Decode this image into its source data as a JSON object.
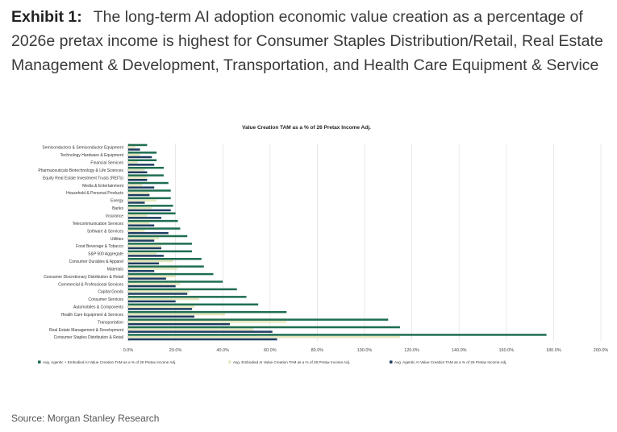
{
  "exhibit": {
    "label": "Exhibit 1:",
    "text": "The long-term AI adoption economic value creation as a percentage of 2026e pretax income is highest for Consumer Staples Distribution/Retail, Real Estate Management & Development, Transportation, and Health Care Equipment & Service"
  },
  "source": "Source: Morgan Stanley Research",
  "colors": {
    "combined": "#1e6e50",
    "embodied": "#e5e7bd",
    "agentic": "#1f3d62",
    "grid": "#e3e3e3"
  },
  "chart_data": {
    "type": "bar",
    "orientation": "horizontal",
    "title": "Value Creation TAM as a % of 26 Pretax Income Adj.",
    "xlim": [
      0,
      200
    ],
    "xticks": [
      "0.0%",
      "20.0%",
      "40.0%",
      "60.0%",
      "80.0%",
      "100.0%",
      "120.0%",
      "140.0%",
      "160.0%",
      "180.0%",
      "200.0%"
    ],
    "grid": "vertical",
    "legend_position": "bottom",
    "categories": [
      "Semiconductors & Semiconductor Equipment",
      "Technology Hardware & Equipment",
      "Financial Services",
      "Pharmaceuticals Biotechnology & Life Sciences",
      "Equity Real Estate Investment Trusts (REITs)",
      "Media & Entertainment",
      "Household & Personal Products",
      "Energy",
      "Banks",
      "Insurance",
      "Telecommunication Services",
      "Software & Services",
      "Utilities",
      "Food Beverage & Tobacco",
      "S&P 500 Aggregate",
      "Consumer Durables & Apparel",
      "Materials",
      "Consumer Discretionary Distribution & Retail",
      "Commercial & Professional Services",
      "Capital Goods",
      "Consumer Services",
      "Automobiles & Components",
      "Health Care Equipment & Services",
      "Transportation",
      "Real Estate Management & Development",
      "Consumer Staples Distribution & Retail"
    ],
    "series": [
      {
        "name": "Avg. Agentic + Embodied AI Value Creation TAM as a % of 26 Pretax Income Adj.",
        "values": [
          8,
          12,
          12,
          15,
          15,
          17,
          18,
          18,
          19,
          20,
          21,
          22,
          25,
          27,
          27,
          31,
          32,
          36,
          40,
          46,
          50,
          55,
          67,
          110,
          115,
          177
        ]
      },
      {
        "name": "Avg. Embodied AI Value Creation TAM as a % of 26 Pretax Income Adj.",
        "values": [
          3,
          5,
          4,
          7,
          8,
          6,
          9,
          12,
          10,
          8,
          9,
          7,
          13,
          14,
          12,
          19,
          21,
          20,
          22,
          26,
          30,
          28,
          41,
          67,
          53,
          115
        ]
      },
      {
        "name": "Avg. Agentic AI Value Creation TAM as a % of 26 Pretax Income Adj.",
        "values": [
          5,
          10,
          11,
          8,
          8,
          11,
          9,
          7,
          18,
          14,
          11,
          17,
          11,
          14,
          15,
          13,
          11,
          16,
          20,
          25,
          20,
          27,
          28,
          43,
          61,
          63
        ]
      }
    ]
  }
}
